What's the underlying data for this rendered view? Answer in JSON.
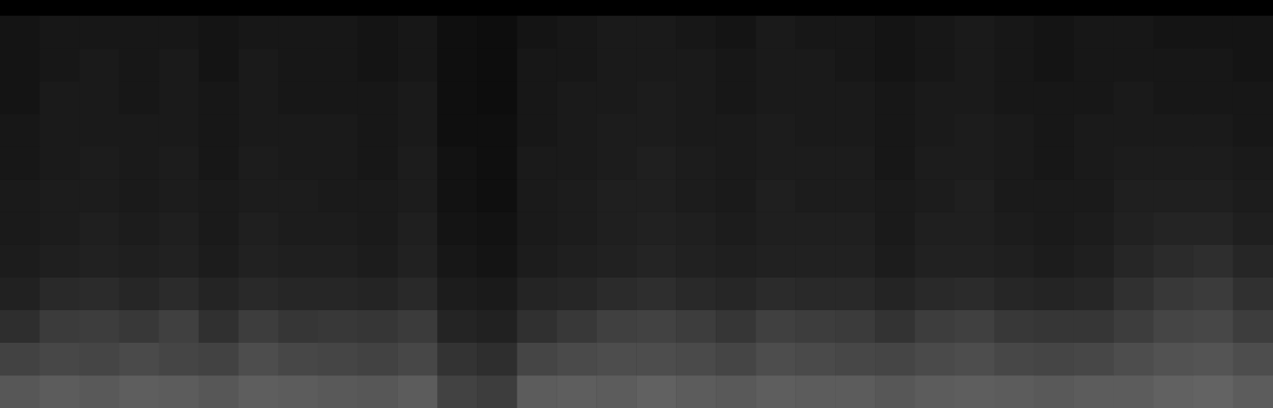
{
  "chart_data": {
    "type": "heatmap",
    "grid": false,
    "tick_labels": false,
    "zlim": [
      0,
      100
    ],
    "cells": [
      [
        34,
        36,
        35,
        37,
        36,
        34,
        37,
        36,
        35,
        34,
        36,
        26,
        24,
        36,
        37,
        36,
        38,
        36,
        35,
        37,
        36,
        36,
        34,
        36,
        37,
        36,
        35,
        36,
        36,
        38,
        39,
        36
      ],
      [
        26,
        28,
        27,
        29,
        27,
        26,
        30,
        28,
        27,
        26,
        28,
        20,
        18,
        27,
        29,
        30,
        30,
        29,
        27,
        30,
        29,
        28,
        27,
        29,
        30,
        28,
        27,
        28,
        30,
        32,
        33,
        30
      ],
      [
        18,
        23,
        24,
        22,
        25,
        19,
        24,
        21,
        22,
        21,
        23,
        14,
        13,
        19,
        22,
        25,
        26,
        24,
        21,
        25,
        24,
        23,
        20,
        24,
        25,
        22,
        21,
        21,
        24,
        27,
        28,
        24
      ],
      [
        13,
        16,
        17,
        15,
        17,
        14,
        16,
        15,
        15,
        14,
        16,
        11,
        10,
        14,
        15,
        17,
        18,
        16,
        15,
        17,
        16,
        16,
        14,
        16,
        17,
        15,
        14,
        15,
        19,
        22,
        23,
        19
      ],
      [
        11,
        12,
        13,
        12,
        13,
        11,
        13,
        12,
        12,
        11,
        13,
        9,
        8,
        11,
        12,
        13,
        14,
        13,
        12,
        13,
        13,
        13,
        11,
        13,
        13,
        12,
        11,
        12,
        15,
        17,
        18,
        15
      ],
      [
        10,
        11,
        12,
        11,
        12,
        10,
        12,
        11,
        11,
        10,
        12,
        8,
        7,
        10,
        11,
        12,
        13,
        12,
        11,
        12,
        12,
        12,
        10,
        12,
        12,
        11,
        10,
        11,
        13,
        14,
        14,
        12
      ],
      [
        10,
        11,
        11,
        10,
        11,
        10,
        11,
        11,
        10,
        10,
        11,
        7,
        6,
        10,
        11,
        12,
        12,
        11,
        10,
        12,
        11,
        11,
        10,
        11,
        12,
        10,
        10,
        10,
        12,
        12,
        12,
        11
      ],
      [
        9,
        10,
        11,
        10,
        11,
        9,
        11,
        10,
        10,
        9,
        11,
        7,
        6,
        10,
        10,
        11,
        12,
        11,
        10,
        11,
        11,
        11,
        9,
        11,
        11,
        10,
        9,
        10,
        11,
        11,
        11,
        10
      ],
      [
        9,
        10,
        10,
        10,
        10,
        9,
        10,
        10,
        10,
        9,
        10,
        6,
        6,
        9,
        10,
        11,
        11,
        10,
        10,
        11,
        10,
        10,
        9,
        10,
        11,
        10,
        9,
        10,
        10,
        10,
        10,
        9
      ],
      [
        8,
        10,
        10,
        9,
        10,
        9,
        10,
        9,
        9,
        9,
        10,
        6,
        5,
        9,
        10,
        10,
        11,
        10,
        9,
        10,
        10,
        10,
        9,
        10,
        10,
        9,
        9,
        9,
        10,
        9,
        9,
        9
      ],
      [
        8,
        9,
        10,
        9,
        10,
        8,
        10,
        9,
        9,
        8,
        9,
        6,
        5,
        9,
        9,
        10,
        10,
        10,
        9,
        10,
        10,
        9,
        8,
        9,
        10,
        9,
        8,
        9,
        9,
        9,
        9,
        8
      ],
      [
        8,
        9,
        9,
        9,
        9,
        8,
        9,
        9,
        9,
        8,
        9,
        6,
        5,
        8,
        9,
        10,
        10,
        9,
        8,
        10,
        9,
        9,
        8,
        9,
        10,
        9,
        8,
        9,
        9,
        8,
        8,
        8
      ]
    ]
  }
}
